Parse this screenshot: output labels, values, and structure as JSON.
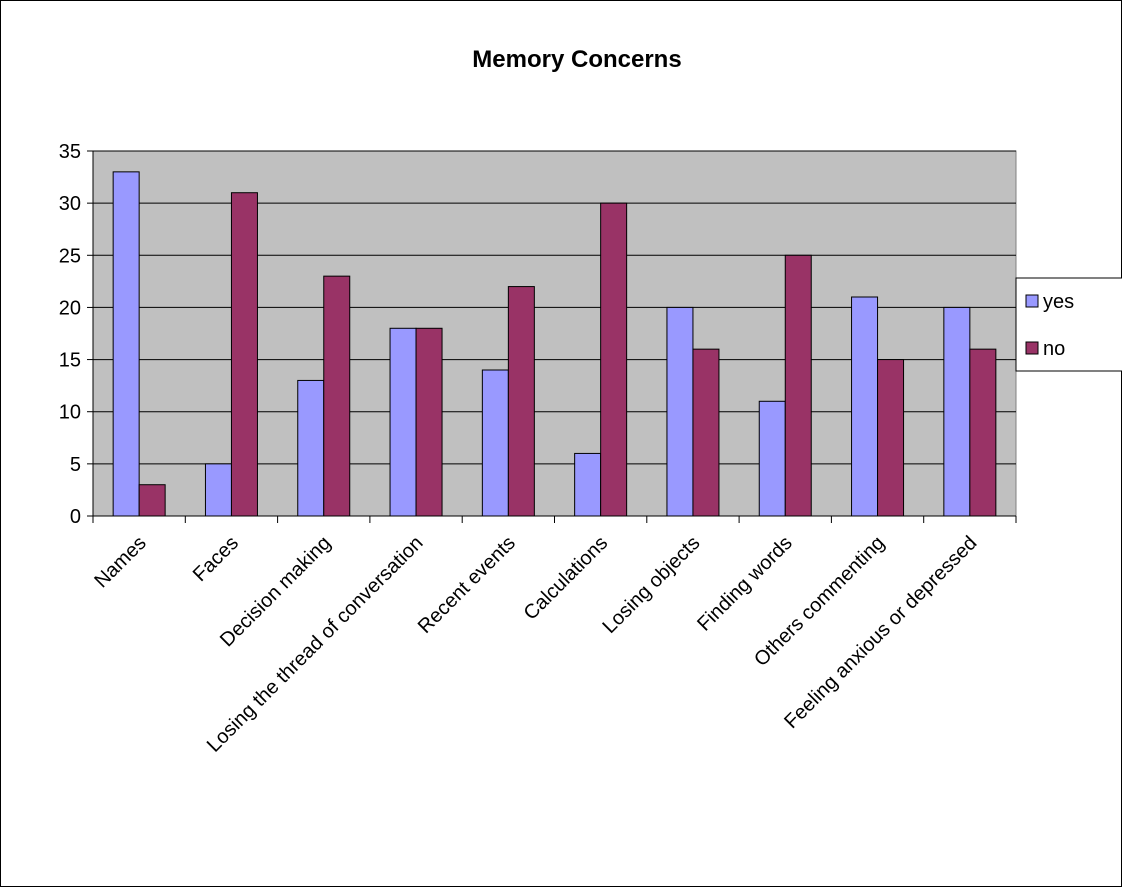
{
  "chart_data": {
    "type": "bar",
    "title": "Memory Concerns",
    "xlabel": "",
    "ylabel": "",
    "categories": [
      "Names",
      "Faces",
      "Decision making",
      "Losing the thread of conversation",
      "Recent events",
      "Calculations",
      "Losing objects",
      "Finding words",
      "Others commenting",
      "Feeling anxious or depressed"
    ],
    "series": [
      {
        "name": "yes",
        "color": "#9999ff",
        "values": [
          33,
          5,
          13,
          18,
          14,
          6,
          20,
          11,
          21,
          20
        ]
      },
      {
        "name": "no",
        "color": "#993366",
        "values": [
          3,
          31,
          23,
          18,
          22,
          30,
          16,
          25,
          15,
          16
        ]
      }
    ],
    "ylim": [
      0,
      35
    ],
    "yticks": [
      0,
      5,
      10,
      15,
      20,
      25,
      30,
      35
    ],
    "grid": true,
    "plot_background": "#c0c0c0",
    "legend_position": "right"
  }
}
